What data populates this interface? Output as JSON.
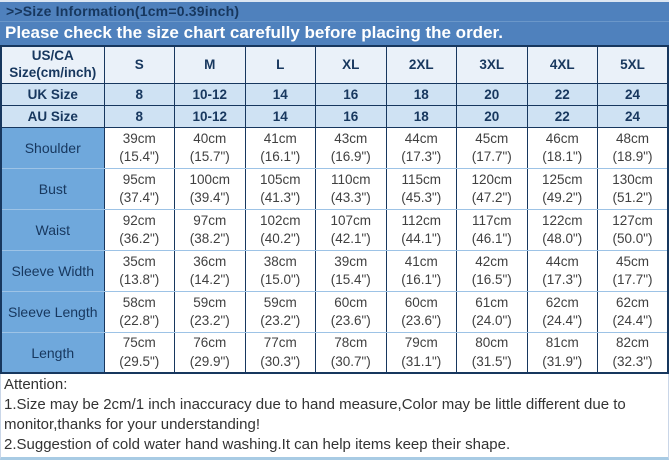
{
  "header": {
    "title": ">>Size Information(1cm=0.39inch)",
    "banner": "Please check the size chart carefully before placing the order."
  },
  "chart_data": {
    "type": "table",
    "title": "Size Information (1cm=0.39inch)",
    "corner_header": "US/CA Size(cm/inch)",
    "size_columns": [
      "S",
      "M",
      "L",
      "XL",
      "2XL",
      "3XL",
      "4XL",
      "5XL"
    ],
    "conversion_rows": [
      {
        "label": "UK Size",
        "values": [
          "8",
          "10-12",
          "14",
          "16",
          "18",
          "20",
          "22",
          "24"
        ]
      },
      {
        "label": "AU Size",
        "values": [
          "8",
          "10-12",
          "14",
          "16",
          "18",
          "20",
          "22",
          "24"
        ]
      }
    ],
    "measurement_rows": [
      {
        "label": "Shoulder",
        "cm": [
          "39cm",
          "40cm",
          "41cm",
          "43cm",
          "44cm",
          "45cm",
          "46cm",
          "48cm"
        ],
        "inch": [
          "(15.4\")",
          "(15.7\")",
          "(16.1\")",
          "(16.9\")",
          "(17.3\")",
          "(17.7\")",
          "(18.1\")",
          "(18.9\")"
        ]
      },
      {
        "label": "Bust",
        "cm": [
          "95cm",
          "100cm",
          "105cm",
          "110cm",
          "115cm",
          "120cm",
          "125cm",
          "130cm"
        ],
        "inch": [
          "(37.4\")",
          "(39.4\")",
          "(41.3\")",
          "(43.3\")",
          "(45.3\")",
          "(47.2\")",
          "(49.2\")",
          "(51.2\")"
        ]
      },
      {
        "label": "Waist",
        "cm": [
          "92cm",
          "97cm",
          "102cm",
          "107cm",
          "112cm",
          "117cm",
          "122cm",
          "127cm"
        ],
        "inch": [
          "(36.2\")",
          "(38.2\")",
          "(40.2\")",
          "(42.1\")",
          "(44.1\")",
          "(46.1\")",
          "(48.0\")",
          "(50.0\")"
        ]
      },
      {
        "label": "Sleeve Width",
        "cm": [
          "35cm",
          "36cm",
          "38cm",
          "39cm",
          "41cm",
          "42cm",
          "44cm",
          "45cm"
        ],
        "inch": [
          "(13.8\")",
          "(14.2\")",
          "(15.0\")",
          "(15.4\")",
          "(16.1\")",
          "(16.5\")",
          "(17.3\")",
          "(17.7\")"
        ]
      },
      {
        "label": "Sleeve Length",
        "cm": [
          "58cm",
          "59cm",
          "59cm",
          "60cm",
          "60cm",
          "61cm",
          "62cm",
          "62cm"
        ],
        "inch": [
          "(22.8\")",
          "(23.2\")",
          "(23.2\")",
          "(23.6\")",
          "(23.6\")",
          "(24.0\")",
          "(24.4\")",
          "(24.4\")"
        ]
      },
      {
        "label": "Length",
        "cm": [
          "75cm",
          "76cm",
          "77cm",
          "78cm",
          "79cm",
          "80cm",
          "81cm",
          "82cm"
        ],
        "inch": [
          "(29.5\")",
          "(29.9\")",
          "(30.3\")",
          "(30.7\")",
          "(31.1\")",
          "(31.5\")",
          "(31.9\")",
          "(32.3\")"
        ]
      }
    ]
  },
  "attention": {
    "title": "Attention:",
    "notes": [
      "1.Size may be 2cm/1 inch inaccuracy due to hand measure,Color may be little different due to monitor,thanks for your understanding!",
      "2.Suggestion of cold water hand washing.It can help items keep their shape."
    ]
  },
  "colors": {
    "banner_bg": "#4f81bd",
    "banner_text": "#ffffff",
    "title_text": "#17375e",
    "header_row_bg": "#eaf1f9",
    "conversion_row_bg": "#cfe2f3",
    "label_col_bg": "#6fa8dc",
    "dark_border": "#17375e",
    "light_border": "#9dc3e6",
    "data_text": "#404040"
  }
}
